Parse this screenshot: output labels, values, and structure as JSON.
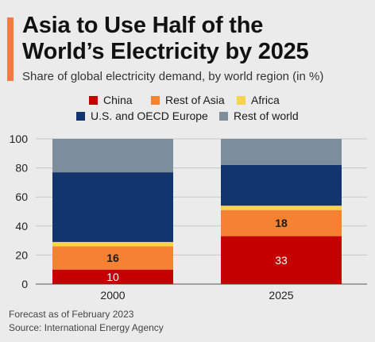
{
  "header": {
    "title_line1": "Asia to Use Half of the",
    "title_line2": "World’s Electricity by 2025",
    "subtitle": "Share of global electricity demand, by world region (in %)"
  },
  "legend": [
    {
      "label": "China",
      "color": "#c50000"
    },
    {
      "label": "Rest of Asia",
      "color": "#f58233"
    },
    {
      "label": "Africa",
      "color": "#f8d34c"
    },
    {
      "label": "U.S. and OECD Europe",
      "color": "#12356e"
    },
    {
      "label": "Rest of world",
      "color": "#7c8d9c"
    }
  ],
  "chart_data": {
    "type": "bar",
    "stacked": true,
    "categories": [
      "2000",
      "2025"
    ],
    "series": [
      {
        "name": "China",
        "color": "#c50000",
        "values": [
          10,
          33
        ],
        "labels": [
          "10",
          "33"
        ]
      },
      {
        "name": "Rest of Asia",
        "color": "#f58233",
        "values": [
          16,
          18
        ],
        "labels": [
          "16",
          "18"
        ]
      },
      {
        "name": "Africa",
        "color": "#f8d34c",
        "values": [
          3,
          3
        ],
        "labels": [
          "",
          ""
        ]
      },
      {
        "name": "U.S. and OECD Europe",
        "color": "#12356e",
        "values": [
          48,
          28
        ],
        "labels": [
          "",
          ""
        ]
      },
      {
        "name": "Rest of world",
        "color": "#7c8d9c",
        "values": [
          23,
          18
        ],
        "labels": [
          "",
          ""
        ]
      }
    ],
    "ylim": [
      0,
      100
    ],
    "yticks": [
      "0",
      "20",
      "40",
      "60",
      "80",
      "100"
    ],
    "grid": true,
    "legend_position": "top"
  },
  "footer": {
    "note": "Forecast as of February 2023",
    "source": "Source: International Energy Agency"
  }
}
